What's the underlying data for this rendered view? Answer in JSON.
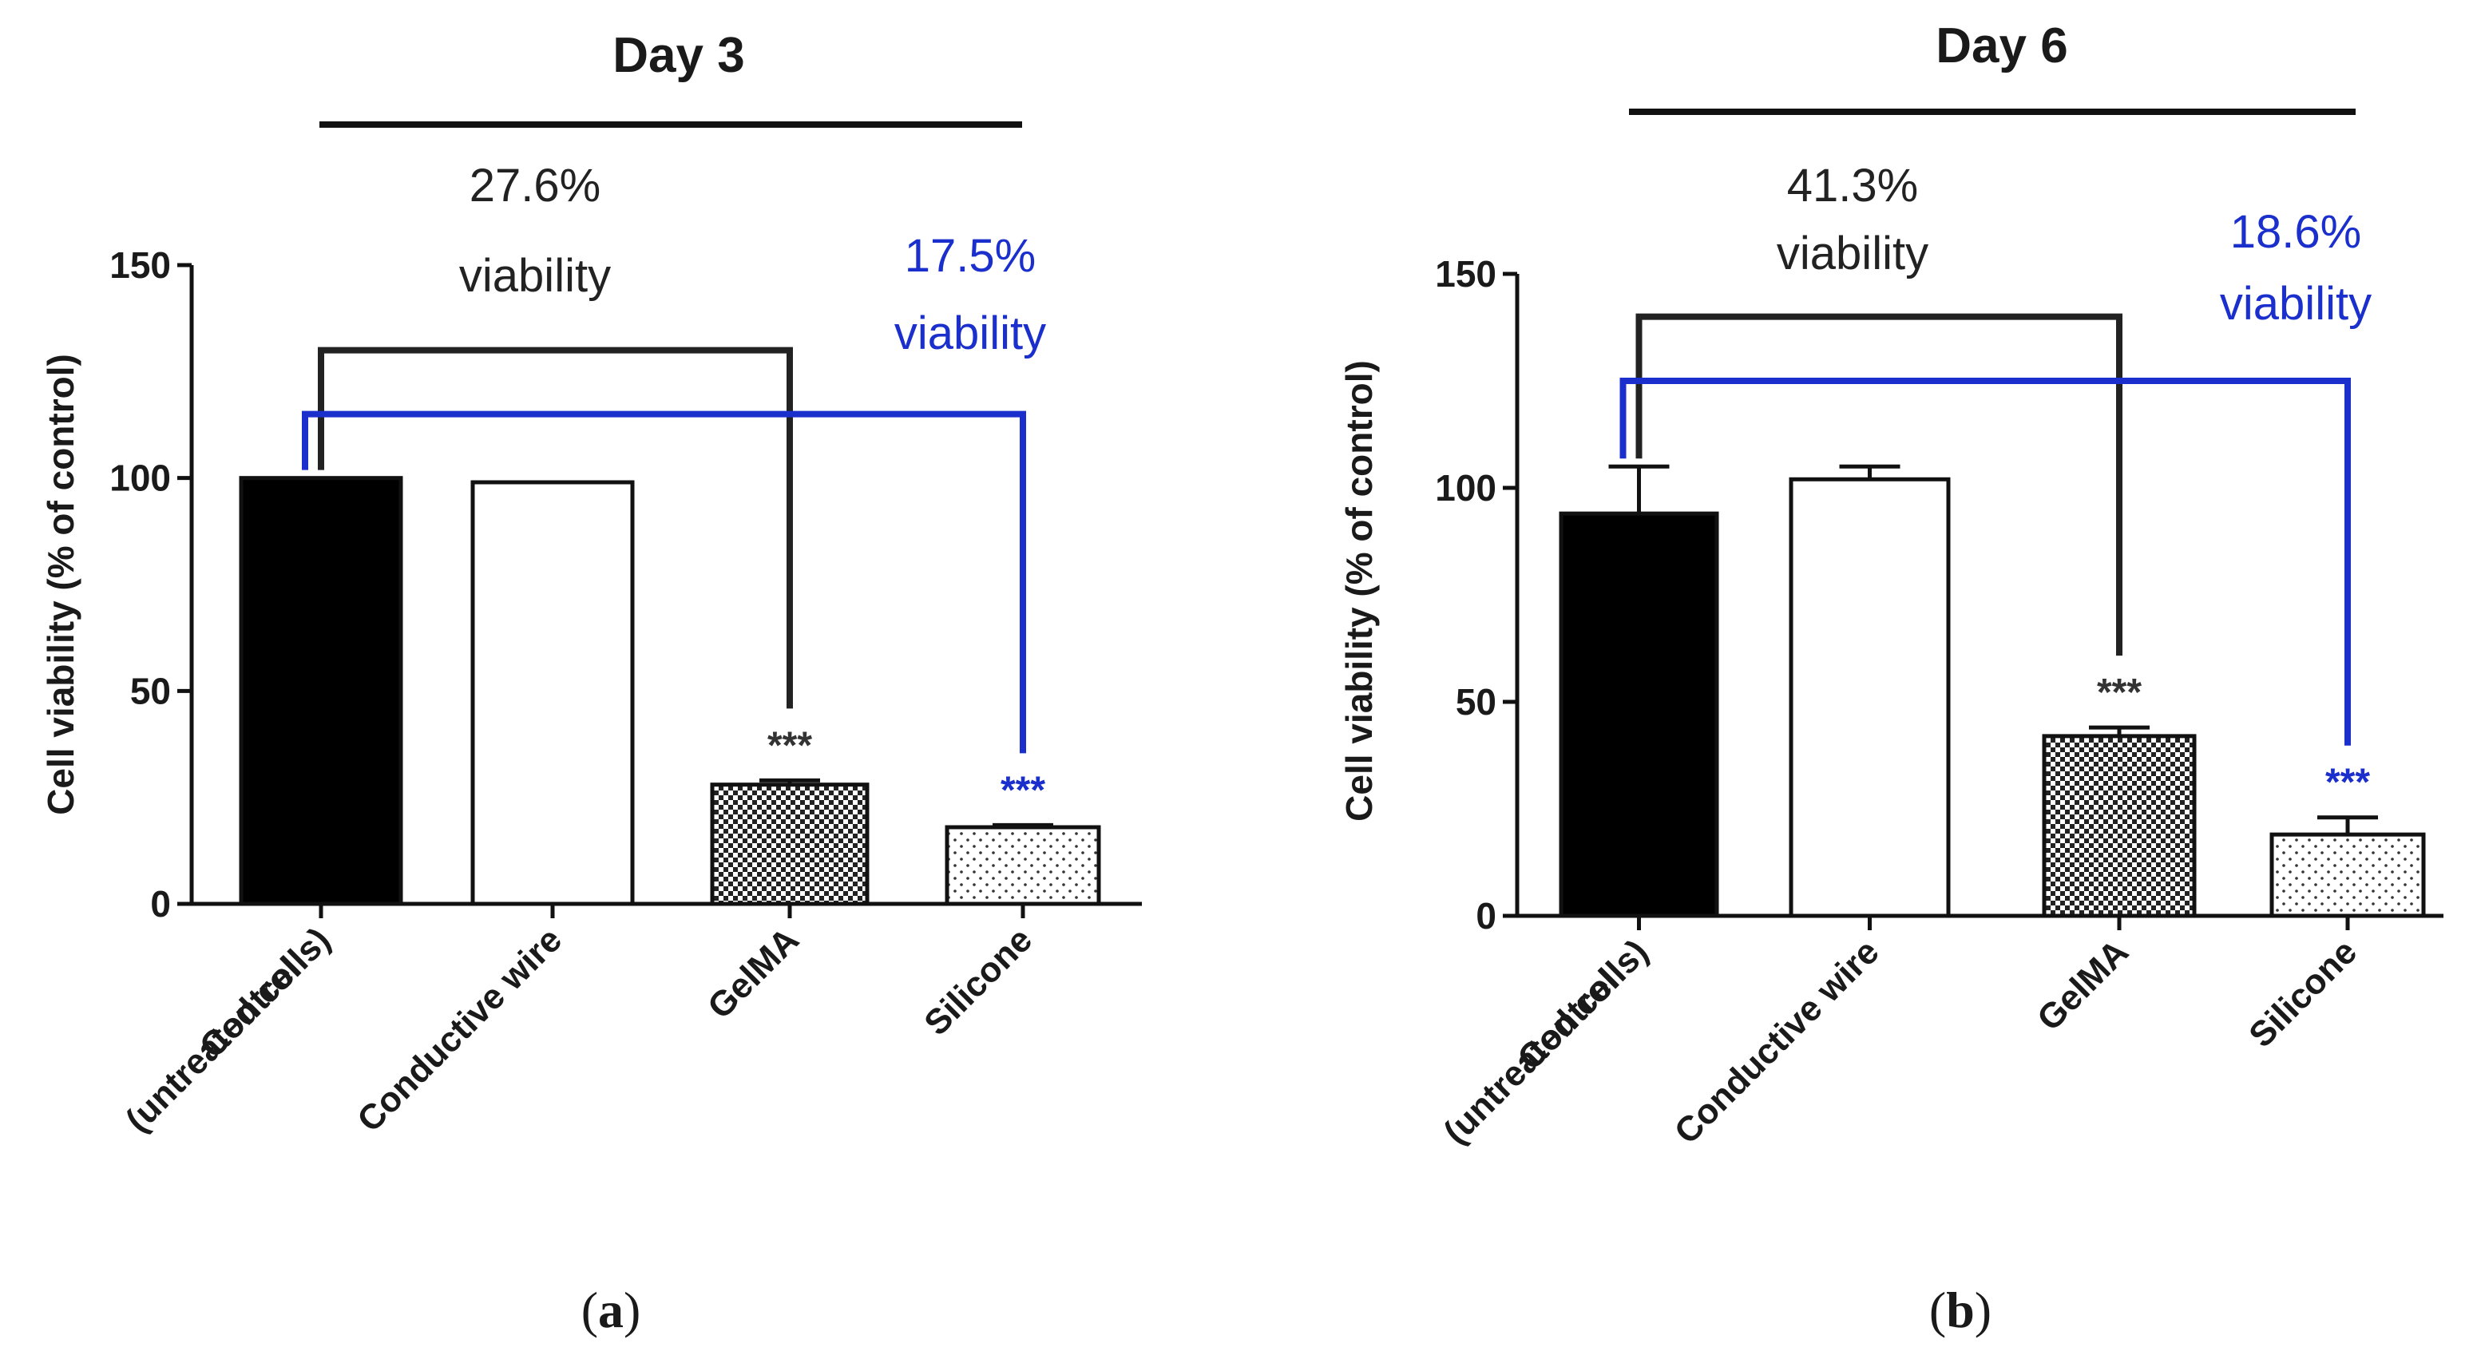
{
  "chart_data": [
    {
      "type": "bar",
      "title": "Day 3",
      "panel_label": "a",
      "ylabel": "Cell viability (% of control)",
      "xlabel": "",
      "ylim": [
        0,
        150
      ],
      "yticks": [
        0,
        50,
        100,
        150
      ],
      "categories": [
        "Control (untreated cells)",
        "Conductive wire",
        "GelMA",
        "Silicone"
      ],
      "category_lines": [
        [
          "Control",
          "(untreated cells)"
        ],
        [
          "Conductive wire"
        ],
        [
          "GelMA"
        ],
        [
          "Silicone"
        ]
      ],
      "values": [
        100,
        99,
        28,
        18
      ],
      "errors": [
        0,
        0,
        1,
        0.5
      ],
      "patterns": [
        "solid",
        "none",
        "dense-dots",
        "sparse-dots"
      ],
      "significance": [
        "",
        "",
        "***",
        "***"
      ],
      "significance_colors": [
        "",
        "",
        "#333333",
        "#1a2fcc"
      ],
      "annotations": [
        {
          "text_lines": [
            "27.6%",
            "viability"
          ],
          "color": "#222222",
          "from_bar": 0,
          "to_bar": 2,
          "level": 130
        },
        {
          "text_lines": [
            "17.5%",
            "viability"
          ],
          "color": "#1a2fcc",
          "from_bar": 0,
          "to_bar": 3,
          "level": 115
        }
      ]
    },
    {
      "type": "bar",
      "title": "Day 6",
      "panel_label": "b",
      "ylabel": "Cell viability (% of control)",
      "xlabel": "",
      "ylim": [
        0,
        150
      ],
      "yticks": [
        0,
        50,
        100,
        150
      ],
      "categories": [
        "Control (untreated cells)",
        "Conductive wire",
        "GelMA",
        "Silicone"
      ],
      "category_lines": [
        [
          "Control",
          "(untreated cells)"
        ],
        [
          "Conductive wire"
        ],
        [
          "GelMA"
        ],
        [
          "Silicone"
        ]
      ],
      "values": [
        94,
        102,
        42,
        19
      ],
      "errors": [
        11,
        3,
        2,
        4
      ],
      "patterns": [
        "solid",
        "none",
        "dense-dots",
        "sparse-dots"
      ],
      "significance": [
        "",
        "",
        "***",
        "***"
      ],
      "significance_colors": [
        "",
        "",
        "#333333",
        "#1a2fcc"
      ],
      "annotations": [
        {
          "text_lines": [
            "41.3%",
            "viability"
          ],
          "color": "#222222",
          "from_bar": 0,
          "to_bar": 2,
          "level": 140
        },
        {
          "text_lines": [
            "18.6%",
            "viability"
          ],
          "color": "#1a2fcc",
          "from_bar": 0,
          "to_bar": 3,
          "level": 125
        }
      ]
    }
  ]
}
